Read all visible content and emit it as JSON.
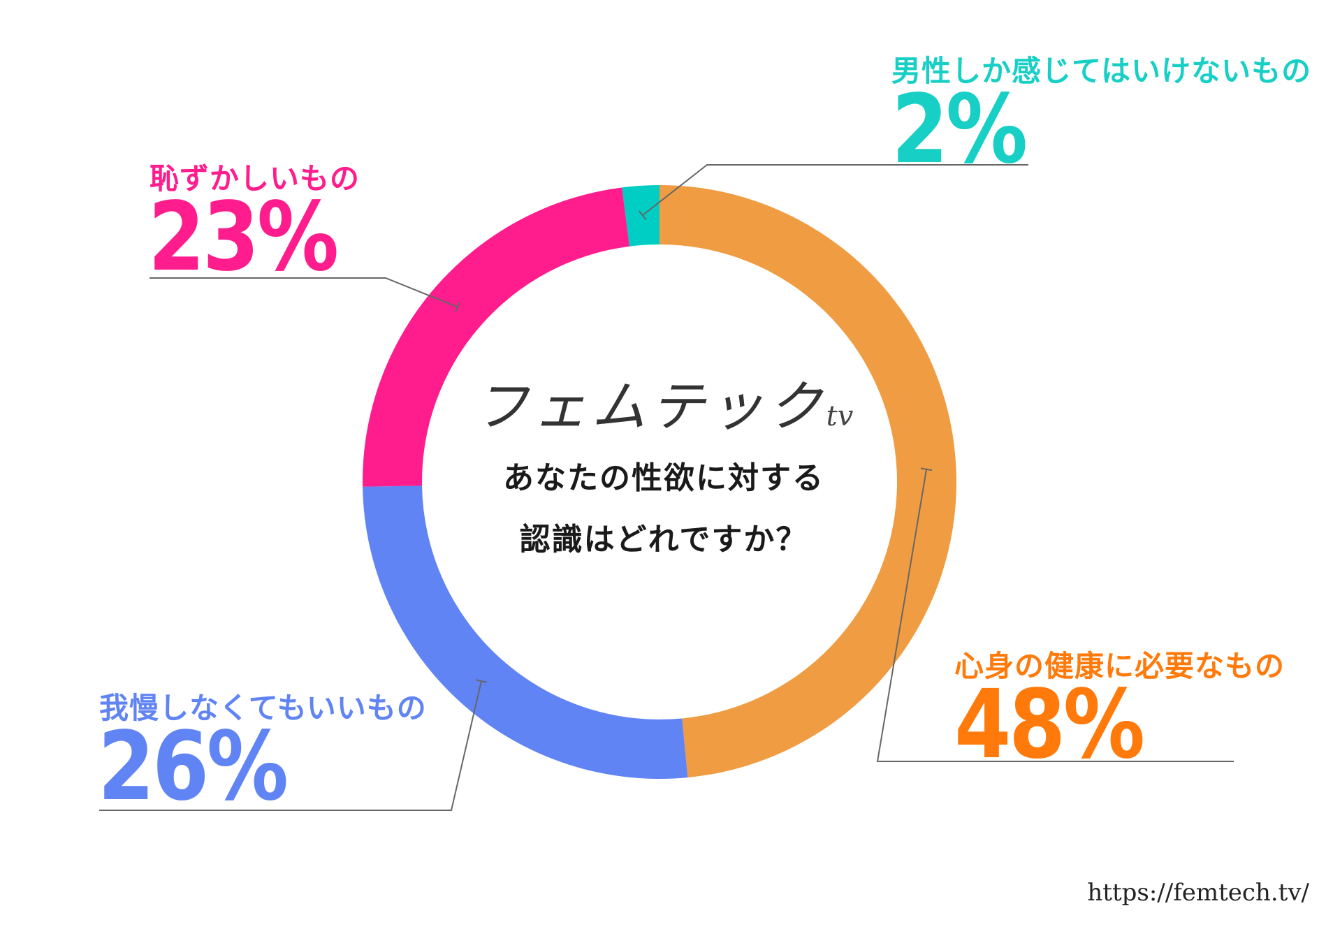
{
  "chart_data": {
    "type": "pie",
    "title": "あなたの性欲に対する認識はどれですか？",
    "categories": [
      "男性しか感じてはいけないもの",
      "心身の健康に必要なもの",
      "我慢しなくてもいいもの",
      "恥ずかしいもの"
    ],
    "values": [
      2,
      48,
      26,
      23
    ],
    "value_labels": [
      "2%",
      "48%",
      "26%",
      "23%"
    ],
    "colors": [
      "#00CEC4",
      "#F09C42",
      "#6184F5",
      "#FF1C8D"
    ],
    "label_colors": [
      "#18CFC6",
      "#FF7A0A",
      "#6184F5",
      "#FF1C8D"
    ],
    "inner_radius_ratio": 0.8
  },
  "center": {
    "logo_main": "フェムテック",
    "logo_suffix": "tv",
    "question_line1": "あなたの性欲に対する",
    "question_line2": "認識はどれですか？"
  },
  "footer": {
    "url": "https://femtech.tv/"
  },
  "colors": {
    "leader_line": "#666666"
  }
}
